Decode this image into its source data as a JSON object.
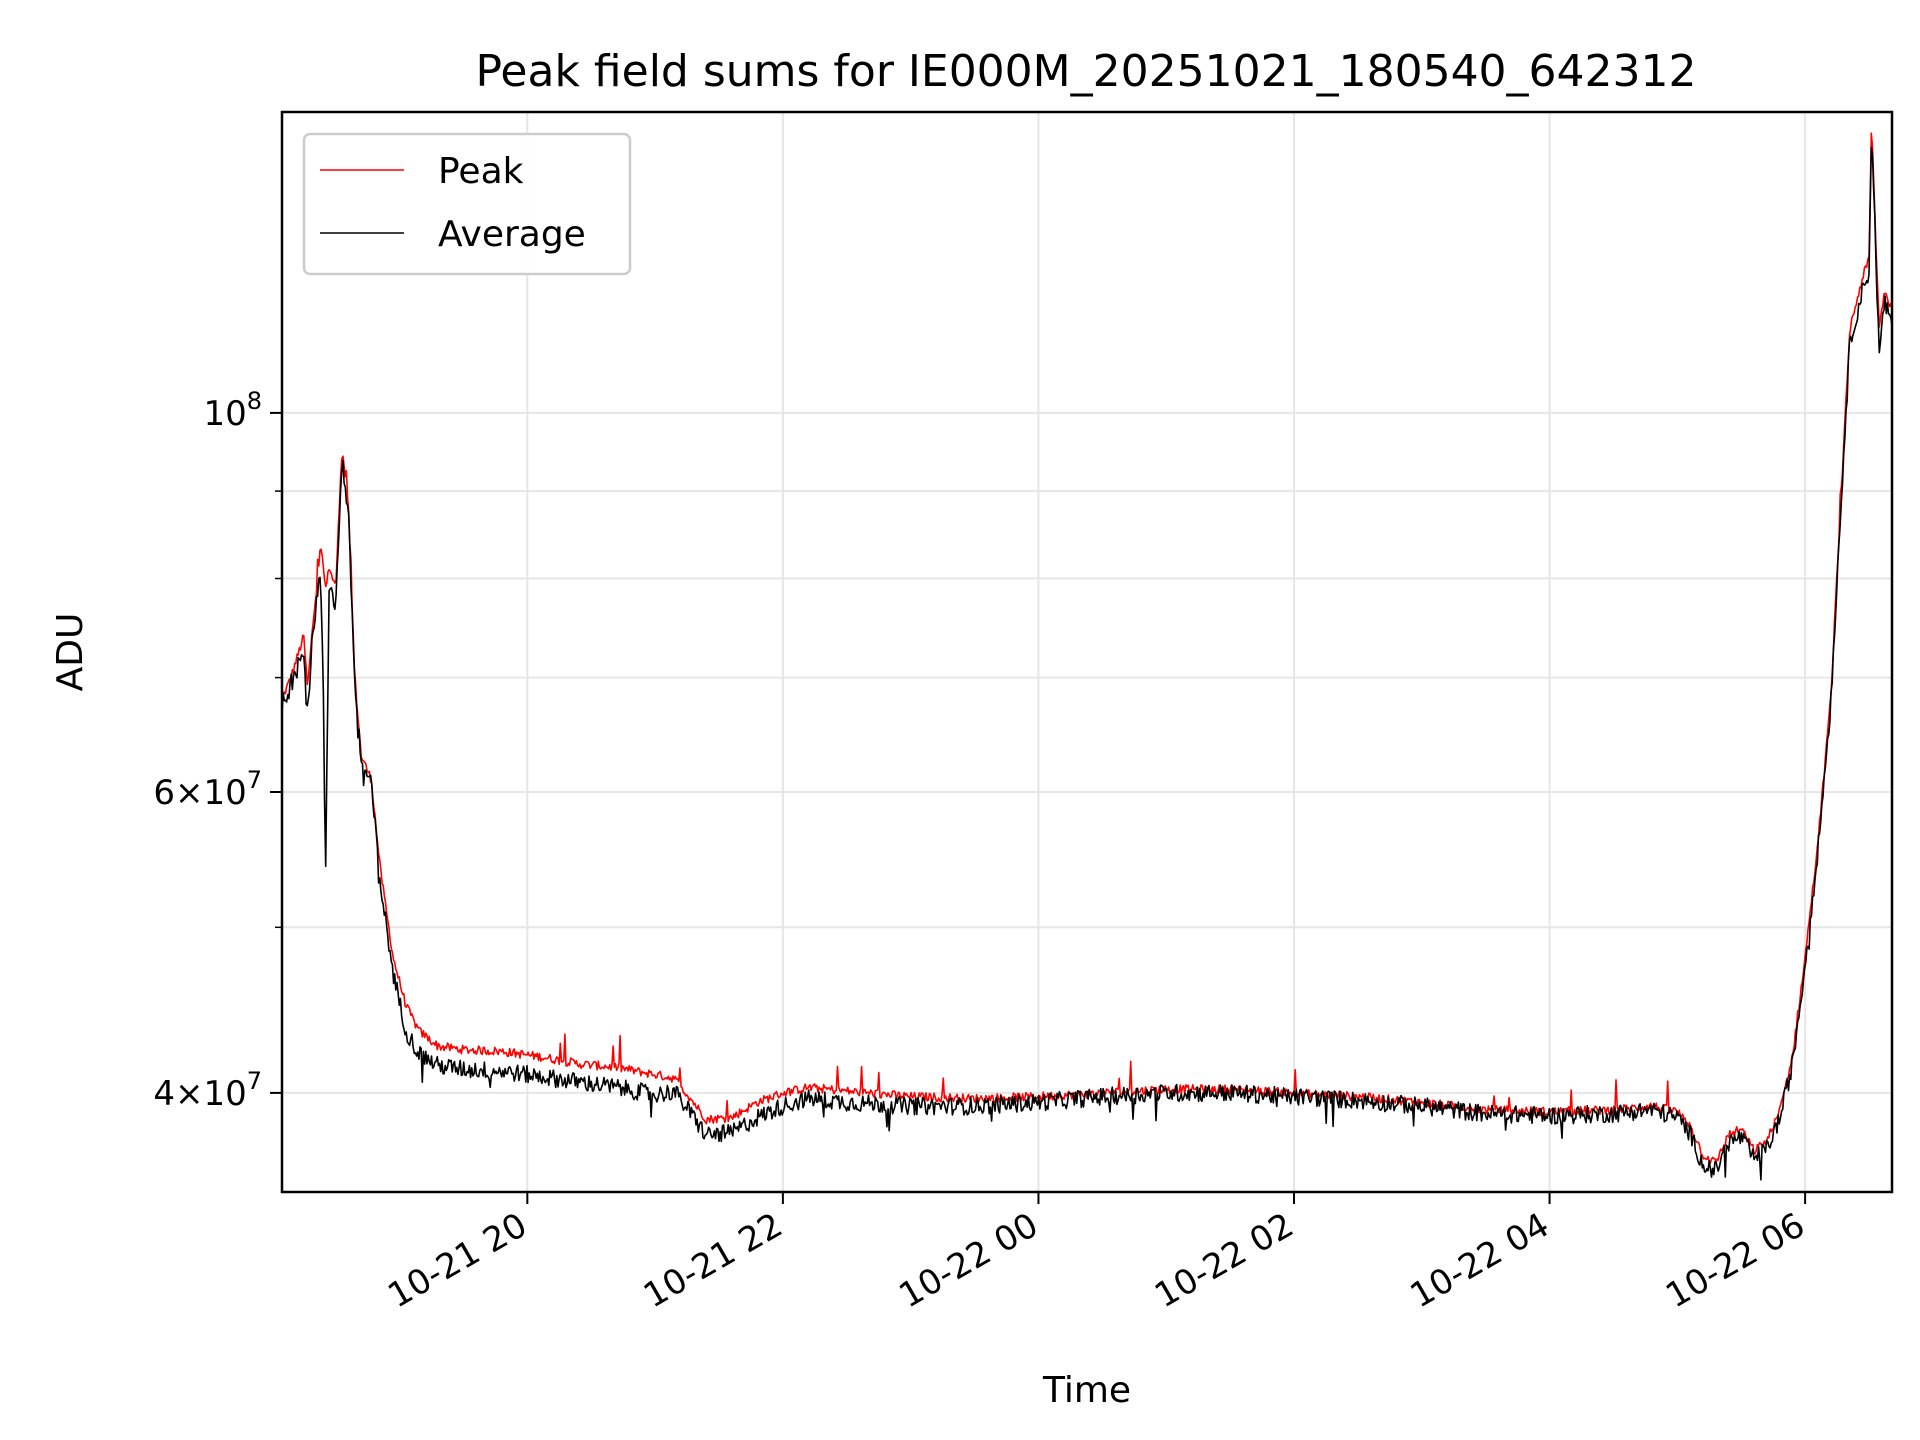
{
  "chart_data": {
    "type": "line",
    "title": "Peak field sums for IE000M_20251021_180540_642312",
    "xlabel": "Time",
    "ylabel": "ADU",
    "y_scale": "log",
    "ylim": [
      35000000,
      150000000
    ],
    "xlim_hours": [
      18.08,
      30.68
    ],
    "grid": true,
    "legend_position": "upper-left",
    "x_ticks": [
      {
        "label": "10-21 20",
        "hour": 20
      },
      {
        "label": "10-21 22",
        "hour": 22
      },
      {
        "label": "10-22 00",
        "hour": 24
      },
      {
        "label": "10-22 02",
        "hour": 26
      },
      {
        "label": "10-22 04",
        "hour": 28
      },
      {
        "label": "10-22 06",
        "hour": 30
      }
    ],
    "y_ticks_major": [
      {
        "mantissa": "",
        "exponent": "8",
        "base": "10",
        "value": 100000000
      },
      {
        "mantissa": "6",
        "exponent": "7",
        "base": "10",
        "value": 60000000
      },
      {
        "mantissa": "4",
        "exponent": "7",
        "base": "10",
        "value": 40000000
      }
    ],
    "y_ticks_minor": [
      50000000,
      70000000,
      80000000,
      90000000
    ],
    "x_unit_note": "x values are hours since 2025-10-21 00:00",
    "series": [
      {
        "name": "Peak",
        "color": "#ff0000",
        "points": [
          [
            18.08,
            68000000
          ],
          [
            18.15,
            70000000
          ],
          [
            18.2,
            72000000
          ],
          [
            18.25,
            74000000
          ],
          [
            18.28,
            69000000
          ],
          [
            18.32,
            75000000
          ],
          [
            18.36,
            80000000
          ],
          [
            18.38,
            84000000
          ],
          [
            18.42,
            79000000
          ],
          [
            18.45,
            81000000
          ],
          [
            18.5,
            79000000
          ],
          [
            18.55,
            95000000
          ],
          [
            18.6,
            88000000
          ],
          [
            18.65,
            70000000
          ],
          [
            18.7,
            63000000
          ],
          [
            18.78,
            61000000
          ],
          [
            18.85,
            54000000
          ],
          [
            18.95,
            48000000
          ],
          [
            19.05,
            45000000
          ],
          [
            19.15,
            43500000
          ],
          [
            19.3,
            42600000
          ],
          [
            19.5,
            42400000
          ],
          [
            19.8,
            42300000
          ],
          [
            20.1,
            42000000
          ],
          [
            20.4,
            41600000
          ],
          [
            20.7,
            41400000
          ],
          [
            21.0,
            41000000
          ],
          [
            21.15,
            40800000
          ],
          [
            21.3,
            39500000
          ],
          [
            21.4,
            38600000
          ],
          [
            21.6,
            38700000
          ],
          [
            21.8,
            39500000
          ],
          [
            22.0,
            40000000
          ],
          [
            22.2,
            40300000
          ],
          [
            22.5,
            40100000
          ],
          [
            23.0,
            39800000
          ],
          [
            23.5,
            39700000
          ],
          [
            24.0,
            39800000
          ],
          [
            24.5,
            40000000
          ],
          [
            25.0,
            40200000
          ],
          [
            25.5,
            40200000
          ],
          [
            26.0,
            40000000
          ],
          [
            26.5,
            39800000
          ],
          [
            27.0,
            39500000
          ],
          [
            27.5,
            39100000
          ],
          [
            28.0,
            39000000
          ],
          [
            28.5,
            39100000
          ],
          [
            28.8,
            39300000
          ],
          [
            29.0,
            39000000
          ],
          [
            29.1,
            38300000
          ],
          [
            29.2,
            36800000
          ],
          [
            29.3,
            36400000
          ],
          [
            29.4,
            37800000
          ],
          [
            29.5,
            38100000
          ],
          [
            29.6,
            37000000
          ],
          [
            29.7,
            37500000
          ],
          [
            29.8,
            39000000
          ],
          [
            29.9,
            42000000
          ],
          [
            30.0,
            48000000
          ],
          [
            30.1,
            56000000
          ],
          [
            30.2,
            68000000
          ],
          [
            30.3,
            95000000
          ],
          [
            30.35,
            112000000
          ],
          [
            30.45,
            120000000
          ],
          [
            30.5,
            123000000
          ],
          [
            30.52,
            148000000
          ],
          [
            30.55,
            128000000
          ],
          [
            30.58,
            112000000
          ],
          [
            30.62,
            118000000
          ],
          [
            30.68,
            115000000
          ]
        ]
      },
      {
        "name": "Average",
        "color": "#000000",
        "points": [
          [
            18.08,
            67500000
          ],
          [
            18.15,
            69500000
          ],
          [
            18.2,
            71500000
          ],
          [
            18.25,
            73000000
          ],
          [
            18.28,
            67000000
          ],
          [
            18.32,
            74000000
          ],
          [
            18.36,
            79000000
          ],
          [
            18.38,
            80000000
          ],
          [
            18.4,
            72000000
          ],
          [
            18.42,
            53000000
          ],
          [
            18.45,
            80000000
          ],
          [
            18.5,
            77000000
          ],
          [
            18.55,
            94000000
          ],
          [
            18.6,
            87000000
          ],
          [
            18.65,
            69500000
          ],
          [
            18.7,
            62500000
          ],
          [
            18.78,
            60500000
          ],
          [
            18.85,
            53000000
          ],
          [
            18.95,
            47000000
          ],
          [
            19.05,
            43500000
          ],
          [
            19.15,
            42200000
          ],
          [
            19.3,
            41500000
          ],
          [
            19.5,
            41300000
          ],
          [
            19.8,
            41200000
          ],
          [
            20.1,
            40900000
          ],
          [
            20.4,
            40600000
          ],
          [
            20.7,
            40300000
          ],
          [
            21.0,
            39900000
          ],
          [
            21.15,
            40100000
          ],
          [
            21.3,
            38700000
          ],
          [
            21.4,
            37800000
          ],
          [
            21.6,
            37900000
          ],
          [
            21.8,
            38700000
          ],
          [
            22.0,
            39300000
          ],
          [
            22.2,
            39700000
          ],
          [
            22.5,
            39500000
          ],
          [
            23.0,
            39300000
          ],
          [
            23.5,
            39300000
          ],
          [
            24.0,
            39500000
          ],
          [
            24.5,
            39800000
          ],
          [
            25.0,
            40000000
          ],
          [
            25.5,
            40000000
          ],
          [
            26.0,
            39800000
          ],
          [
            26.5,
            39600000
          ],
          [
            27.0,
            39300000
          ],
          [
            27.5,
            38900000
          ],
          [
            28.0,
            38800000
          ],
          [
            28.5,
            38900000
          ],
          [
            28.8,
            39100000
          ],
          [
            29.0,
            38700000
          ],
          [
            29.1,
            37900000
          ],
          [
            29.2,
            36300000
          ],
          [
            29.3,
            36000000
          ],
          [
            29.4,
            37400000
          ],
          [
            29.5,
            37700000
          ],
          [
            29.6,
            36600000
          ],
          [
            29.7,
            37100000
          ],
          [
            29.8,
            38600000
          ],
          [
            29.9,
            41500000
          ],
          [
            30.0,
            47500000
          ],
          [
            30.1,
            55500000
          ],
          [
            30.2,
            67500000
          ],
          [
            30.3,
            94000000
          ],
          [
            30.35,
            110000000
          ],
          [
            30.45,
            118000000
          ],
          [
            30.5,
            121000000
          ],
          [
            30.52,
            147000000
          ],
          [
            30.55,
            126000000
          ],
          [
            30.58,
            108000000
          ],
          [
            30.62,
            116000000
          ],
          [
            30.68,
            113000000
          ]
        ]
      }
    ]
  }
}
